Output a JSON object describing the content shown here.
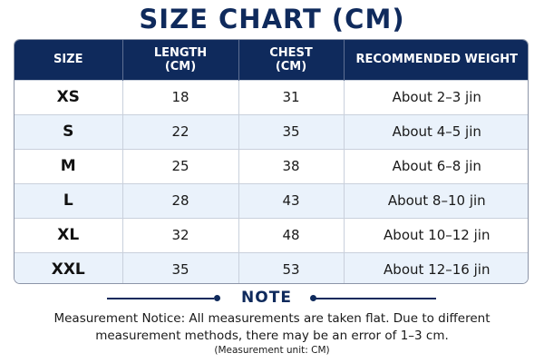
{
  "title": "SIZE CHART (CM)",
  "table": {
    "headers": [
      {
        "line1": "SIZE",
        "line2": ""
      },
      {
        "line1": "LENGTH",
        "line2": "(CM)"
      },
      {
        "line1": "CHEST",
        "line2": "(CM)"
      },
      {
        "line1": "RECOMMENDED WEIGHT",
        "line2": ""
      }
    ],
    "rows": [
      {
        "size": "XS",
        "length": "18",
        "chest": "31",
        "weight": "About 2–3 jin"
      },
      {
        "size": "S",
        "length": "22",
        "chest": "35",
        "weight": "About 4–5 jin"
      },
      {
        "size": "M",
        "length": "25",
        "chest": "38",
        "weight": "About 6–8 jin"
      },
      {
        "size": "L",
        "length": "28",
        "chest": "43",
        "weight": "About 8–10 jin"
      },
      {
        "size": "XL",
        "length": "32",
        "chest": "48",
        "weight": "About 10–12 jin"
      },
      {
        "size": "XXL",
        "length": "35",
        "chest": "53",
        "weight": "About 12–16 jin"
      }
    ]
  },
  "note": {
    "title": "NOTE",
    "line1": "Measurement Notice: All measurements are taken flat. Due to different",
    "line2": "measurement methods, there may be an error of 1–3 cm.",
    "unit": "(Measurement unit: CM)"
  },
  "colors": {
    "header_bg": "#0f2a5c",
    "alt_row_bg": "#eaf2fb",
    "title_color": "#0f2a5c"
  }
}
